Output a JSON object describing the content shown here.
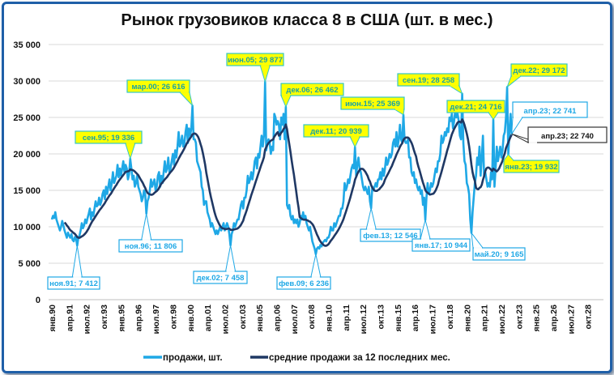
{
  "chart_data": {
    "type": "line",
    "title": "Рынок грузовиков класса 8 в США (шт. в мес.)",
    "xlabel": "",
    "ylabel": "",
    "ylim": [
      0,
      35000
    ],
    "yticks": [
      0,
      5000,
      10000,
      15000,
      20000,
      25000,
      30000,
      35000
    ],
    "ytick_labels": [
      "0",
      "5 000",
      "10 000",
      "15 000",
      "20 000",
      "25 000",
      "30 000",
      "35 000"
    ],
    "x_start": "1990-01",
    "x_end": "2028-12",
    "xtick_labels": [
      "янв.90",
      "апр.91",
      "июл.92",
      "окт.93",
      "янв.95",
      "апр.96",
      "июл.97",
      "окт.98",
      "янв.00",
      "апр.01",
      "июл.02",
      "окт.03",
      "янв.05",
      "апр.06",
      "июл.07",
      "окт.08",
      "янв.10",
      "апр.11",
      "июл.12",
      "окт.13",
      "янв.15",
      "апр.16",
      "июл.17",
      "окт.18",
      "янв.20",
      "апр.21",
      "июл.22",
      "окт.23",
      "янв.25",
      "апр.26",
      "июл.27",
      "окт.28"
    ],
    "grid": true,
    "legend_placement": "bottom",
    "series": [
      {
        "name": "продажи, шт.",
        "color": "#1fa8e6",
        "start": "1990-01",
        "values": [
          11000,
          11500,
          11200,
          12000,
          11000,
          10500,
          10000,
          9500,
          10000,
          10800,
          10200,
          9500,
          9000,
          8500,
          9200,
          8800,
          8500,
          9000,
          8200,
          8000,
          8600,
          8400,
          7412,
          8500,
          8800,
          9500,
          10500,
          9800,
          10200,
          11000,
          10500,
          11200,
          11800,
          12500,
          11000,
          12000,
          11500,
          12500,
          13500,
          12800,
          13000,
          14000,
          13000,
          13500,
          14500,
          15000,
          13800,
          15500,
          14500,
          15500,
          16500,
          15000,
          16000,
          17500,
          16000,
          16500,
          17000,
          18500,
          16800,
          18000,
          17000,
          18000,
          19000,
          17500,
          18500,
          18000,
          16500,
          17200,
          19336,
          18000,
          16500,
          17000,
          15500,
          16000,
          17000,
          15500,
          15000,
          14500,
          13500,
          14000,
          15000,
          14500,
          11806,
          13500,
          14000,
          15000,
          16500,
          15500,
          16000,
          16500,
          15000,
          15500,
          17000,
          17500,
          15500,
          17000,
          16000,
          17500,
          19000,
          17500,
          18000,
          19500,
          17500,
          18000,
          19000,
          20000,
          18500,
          20500,
          19500,
          21000,
          23000,
          21000,
          21500,
          22500,
          21000,
          21500,
          23000,
          24000,
          21500,
          23500,
          22500,
          23500,
          26616,
          22000,
          22000,
          21500,
          19000,
          18500,
          18000,
          17500,
          15500,
          15000,
          13000,
          13500,
          13500,
          12000,
          11500,
          11000,
          10000,
          10500,
          10000,
          9500,
          9000,
          9500,
          9000,
          9500,
          10000,
          9500,
          10000,
          10500,
          9500,
          10000,
          10500,
          10000,
          9000,
          7458,
          9000,
          9500,
          10500,
          10000,
          10500,
          11000,
          11000,
          12000,
          13000,
          13500,
          12500,
          14000,
          14000,
          15000,
          17000,
          16000,
          16500,
          17500,
          16500,
          17500,
          19000,
          19500,
          18000,
          20000,
          19500,
          21000,
          22500,
          21000,
          22500,
          29877,
          20500,
          21500,
          22000,
          21500,
          20000,
          21000,
          20500,
          25500,
          25000,
          24000,
          24500,
          24000,
          22000,
          25000,
          24000,
          25500,
          22000,
          26462,
          13000,
          12500,
          13000,
          11500,
          11000,
          11500,
          10500,
          11000,
          10500,
          11000,
          10000,
          10500,
          11500,
          11000,
          12000,
          11000,
          11500,
          10500,
          10000,
          9500,
          10000,
          9000,
          8000,
          7500,
          7000,
          6236,
          7000,
          7200,
          7000,
          7500,
          7300,
          7800,
          8000,
          8200,
          8000,
          8500,
          8500,
          9000,
          10000,
          9500,
          9500,
          10500,
          10000,
          10500,
          11000,
          11500,
          11500,
          12500,
          12500,
          13500,
          16000,
          15000,
          15500,
          16500,
          16000,
          17000,
          18000,
          18500,
          18000,
          20939,
          17000,
          18500,
          19500,
          18000,
          17500,
          16500,
          15500,
          15000,
          15500,
          15000,
          14500,
          15500,
          13500,
          12546,
          15500,
          15000,
          15500,
          16000,
          15500,
          16500,
          16500,
          17500,
          16500,
          18000,
          17000,
          18000,
          19500,
          18500,
          19000,
          20000,
          19500,
          20000,
          21500,
          22000,
          21000,
          23000,
          21000,
          22000,
          24000,
          22000,
          21500,
          25369,
          22000,
          21500,
          21500,
          22000,
          19500,
          19500,
          17500,
          17000,
          17500,
          16000,
          16500,
          15500,
          15000,
          15500,
          14500,
          15000,
          13000,
          14000,
          10944,
          14000,
          16000,
          14500,
          15000,
          16000,
          15500,
          16000,
          17000,
          18000,
          17500,
          19000,
          19000,
          20000,
          22500,
          21500,
          22000,
          23000,
          22500,
          23500,
          23000,
          25000,
          24500,
          25500,
          23500,
          24500,
          26000,
          25000,
          25500,
          24500,
          22500,
          22000,
          28258,
          21500,
          19000,
          18500,
          16000,
          15500,
          14500,
          11000,
          9165,
          12000,
          14000,
          16000,
          17000,
          19500,
          18500,
          21000,
          17000,
          19500,
          22500,
          17000,
          17500,
          16500,
          15500,
          16000,
          15500,
          17500,
          16500,
          24716,
          15500,
          18000,
          21000,
          19000,
          20000,
          21000,
          19500,
          20500,
          22500,
          23000,
          25000,
          29172,
          19932,
          23000,
          25500,
          22741
        ]
      },
      {
        "name": "средние продажи за 12 последних мес.",
        "color": "#1f3864",
        "window": 12
      }
    ],
    "annotations": [
      {
        "label": "ноя.91; 7 412",
        "date": "1991-11",
        "value": 7412,
        "style": "blue"
      },
      {
        "label": "сен.95; 19 336",
        "date": "1995-09",
        "value": 19336,
        "style": "yellow"
      },
      {
        "label": "ноя.96; 11 806",
        "date": "1996-11",
        "value": 11806,
        "style": "blue"
      },
      {
        "label": "мар.00; 26 616",
        "date": "2000-03",
        "value": 26616,
        "style": "yellow"
      },
      {
        "label": "дек.02; 7 458",
        "date": "2002-12",
        "value": 7458,
        "style": "blue"
      },
      {
        "label": "июн.05; 29 877",
        "date": "2005-06",
        "value": 29877,
        "style": "yellow"
      },
      {
        "label": "дек.06; 26 462",
        "date": "2006-12",
        "value": 26462,
        "style": "yellow"
      },
      {
        "label": "фев.09; 6 236",
        "date": "2009-02",
        "value": 6236,
        "style": "blue"
      },
      {
        "label": "дек.11; 20 939",
        "date": "2011-12",
        "value": 20939,
        "style": "yellow"
      },
      {
        "label": "фев.13; 12 546",
        "date": "2013-02",
        "value": 12546,
        "style": "blue"
      },
      {
        "label": "июн.15; 25 369",
        "date": "2015-06",
        "value": 25369,
        "style": "yellow"
      },
      {
        "label": "янв.17; 10 944",
        "date": "2017-01",
        "value": 10944,
        "style": "blue"
      },
      {
        "label": "сен.19; 28 258",
        "date": "2019-09",
        "value": 28258,
        "style": "yellow"
      },
      {
        "label": "май.20; 9 165",
        "date": "2020-05",
        "value": 9165,
        "style": "blue"
      },
      {
        "label": "дек.21; 24 716",
        "date": "2021-12",
        "value": 24716,
        "style": "yellow"
      },
      {
        "label": "дек.22; 29 172",
        "date": "2022-12",
        "value": 29172,
        "style": "yellow"
      },
      {
        "label": "янв.23; 19 932",
        "date": "2023-01",
        "value": 19932,
        "style": "yellow"
      },
      {
        "label": "апр.23; 22 741",
        "date": "2023-04",
        "value": 22741,
        "style": "blue-large"
      },
      {
        "label": "апр.23; 22 740",
        "date": "2023-04",
        "value": 22740,
        "style": "black"
      }
    ],
    "colors": {
      "yellow_fill": "#ffff00",
      "yellow_border": "#33c6c6",
      "yellow_text": "#1aa3a3",
      "blue": "#1fa8e6",
      "frame": "#1f5fa8"
    }
  }
}
